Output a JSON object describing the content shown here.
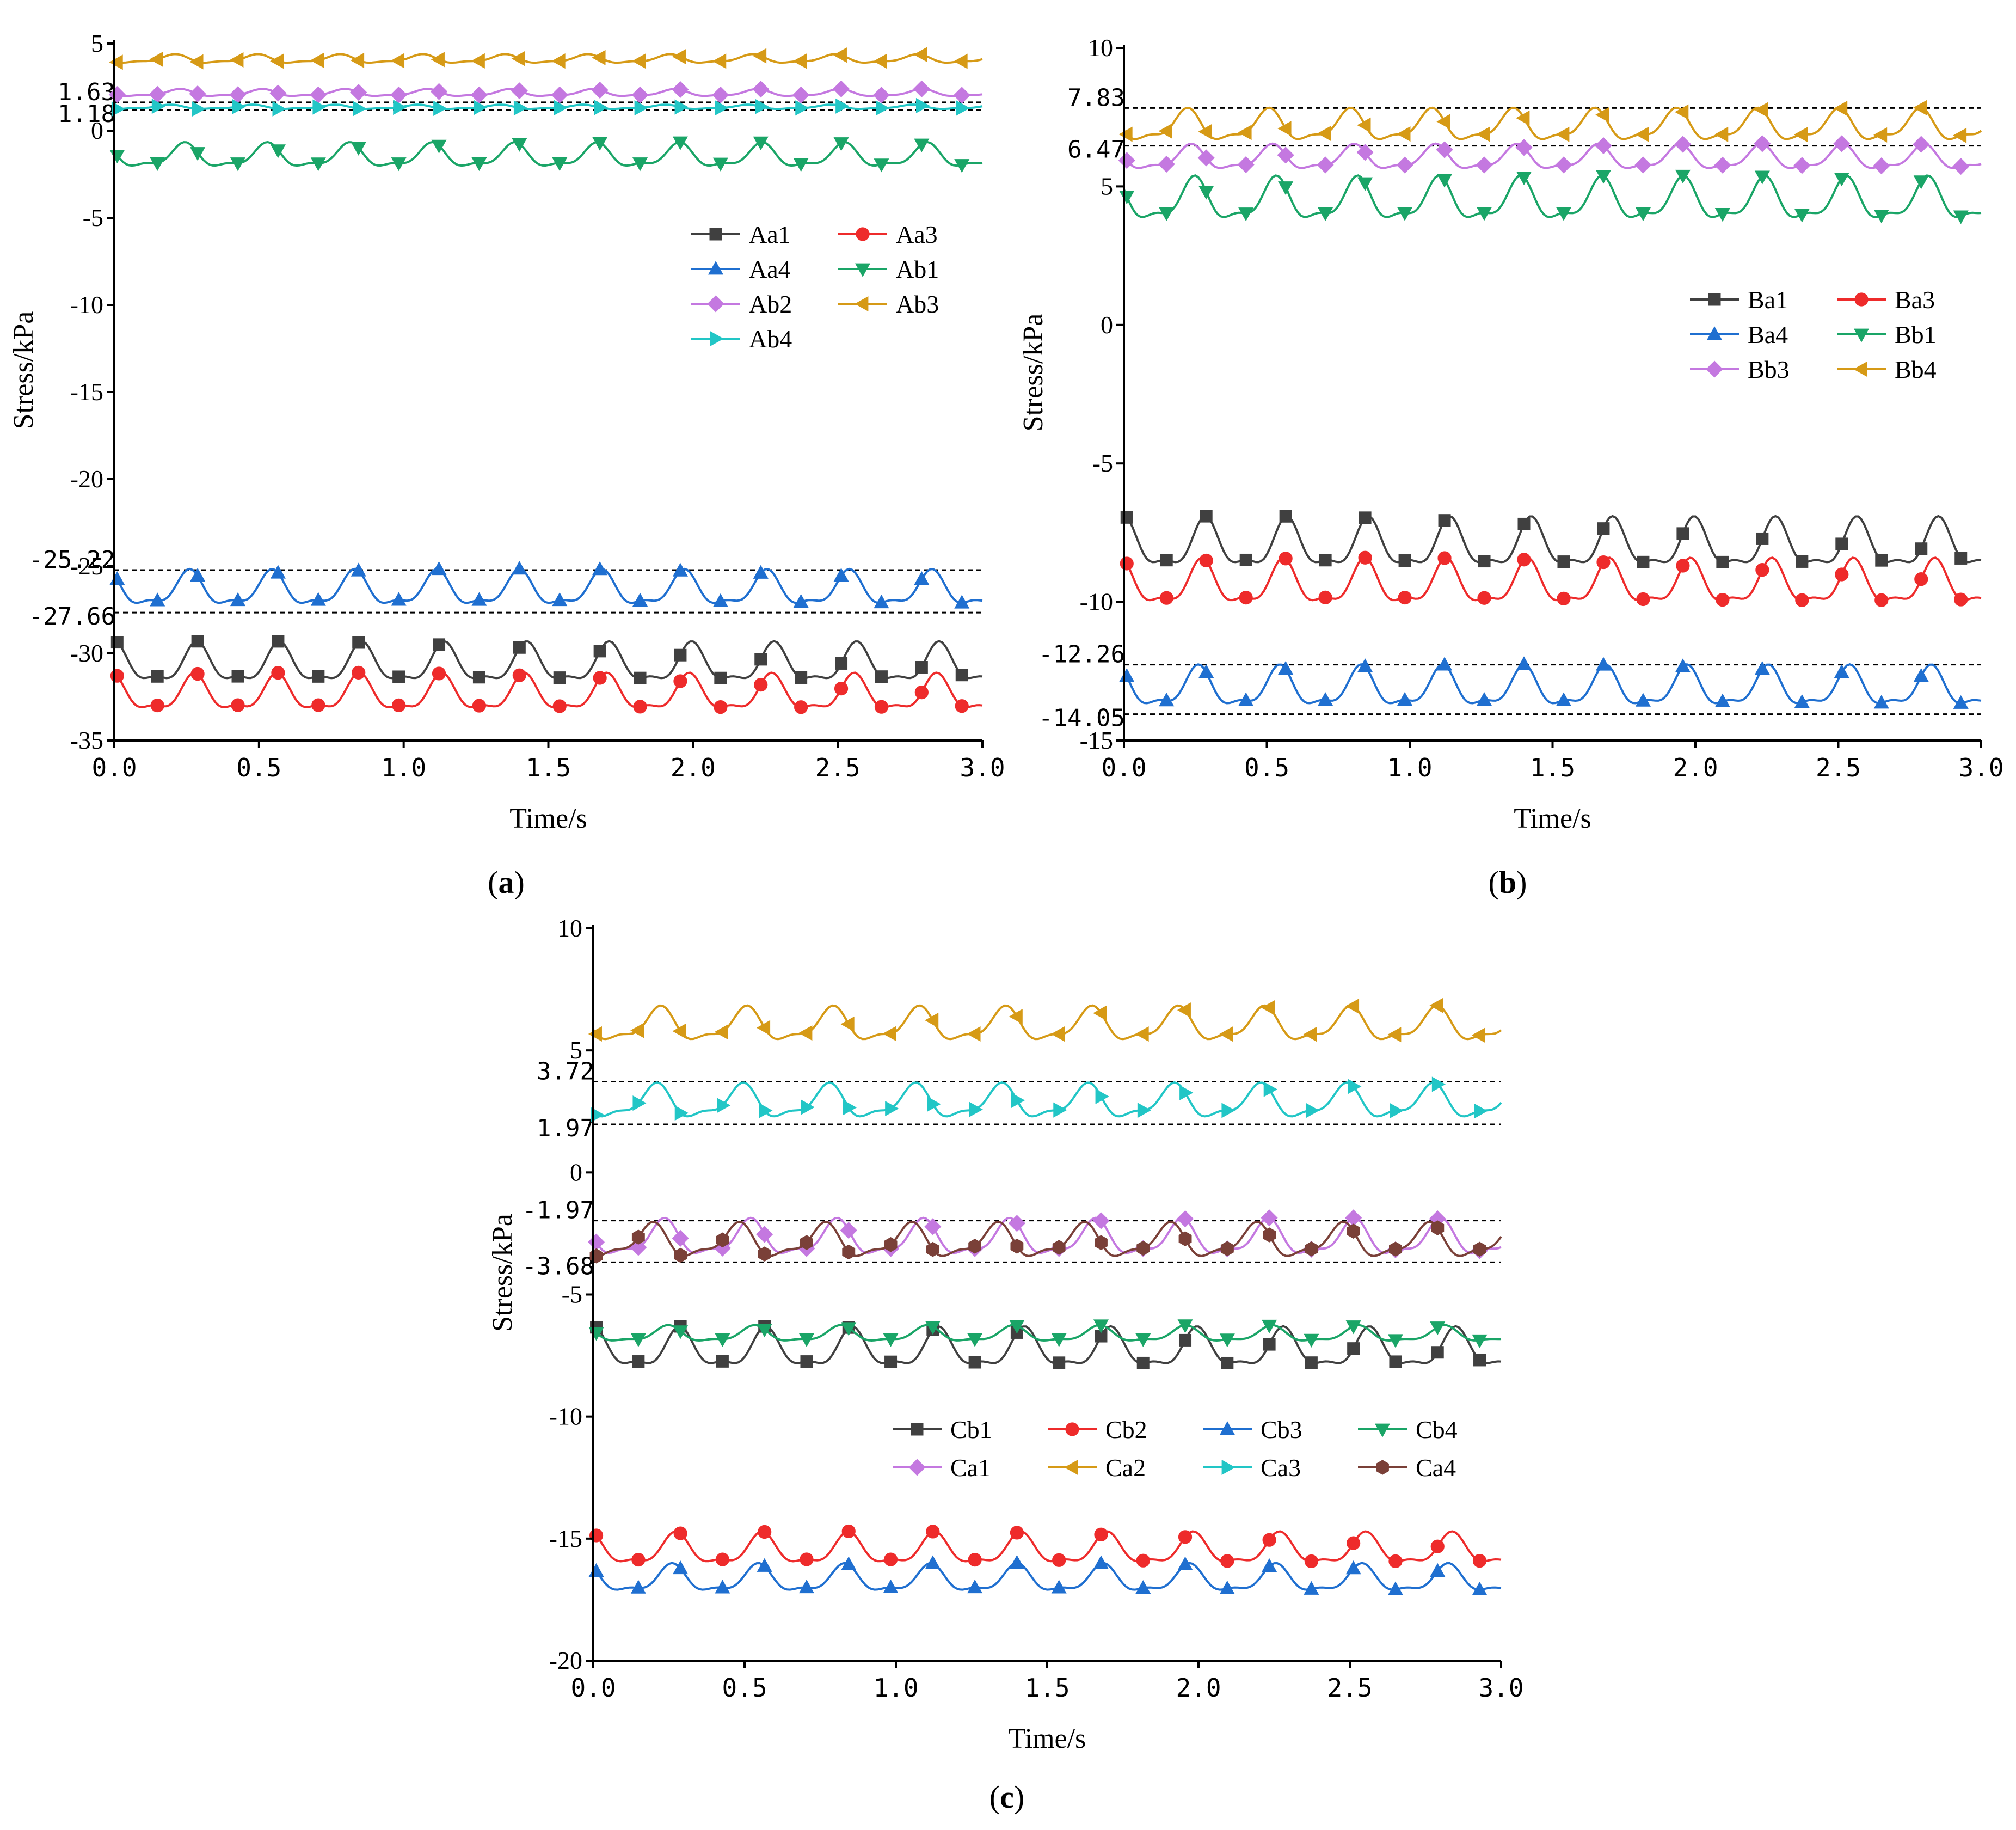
{
  "figure": {
    "panels": [
      "(a)",
      "(b)",
      "(c)"
    ]
  },
  "chart_data": [
    {
      "type": "line",
      "panel_label": "(a)",
      "xlabel": "Time/s",
      "ylabel": "Stress/kPa",
      "xlim": [
        0,
        3
      ],
      "ylim": [
        -35,
        5
      ],
      "xticks": [
        "0.0",
        "0.5",
        "1.0",
        "1.5",
        "2.0",
        "2.5",
        "3.0"
      ],
      "yticks": [
        "5",
        "0",
        "-5",
        "-10",
        "-15",
        "-20",
        "-25",
        "-30",
        "-35"
      ],
      "ref_lines": [
        {
          "value": 1.63,
          "label": "1.63"
        },
        {
          "value": 1.18,
          "label": "1.18"
        },
        {
          "value": -25.22,
          "label": "-25.22"
        },
        {
          "value": -27.66,
          "label": "-27.66"
        }
      ],
      "legend_position": "center-right",
      "legend_columns": 2,
      "series": [
        {
          "name": "Aa1",
          "color": "#404040",
          "marker": "square",
          "center": -30.7,
          "amplitude": 1.4,
          "phase": 0.0
        },
        {
          "name": "Aa3",
          "color": "#ee2b2b",
          "marker": "circle",
          "center": -32.4,
          "amplitude": 1.3,
          "phase": 0.2
        },
        {
          "name": "Aa4",
          "color": "#1f6fd0",
          "marker": "triangle-up",
          "center": -26.4,
          "amplitude": 1.25,
          "phase": 0.6
        },
        {
          "name": "Ab1",
          "color": "#1aa567",
          "marker": "triangle-down",
          "center": -1.5,
          "amplitude": 0.85,
          "phase": 1.0
        },
        {
          "name": "Ab2",
          "color": "#c478e0",
          "marker": "diamond",
          "center": 2.15,
          "amplitude": 0.25,
          "phase": 1.4
        },
        {
          "name": "Ab3",
          "color": "#d69a16",
          "marker": "triangle-left",
          "center": 4.1,
          "amplitude": 0.3,
          "phase": 1.8
        },
        {
          "name": "Ab4",
          "color": "#22c6c6",
          "marker": "triangle-right",
          "center": 1.35,
          "amplitude": 0.15,
          "phase": 2.2
        }
      ]
    },
    {
      "type": "line",
      "panel_label": "(b)",
      "xlabel": "Time/s",
      "ylabel": "Stress/kPa",
      "xlim": [
        0,
        3
      ],
      "ylim": [
        -15,
        10
      ],
      "xticks": [
        "0.0",
        "0.5",
        "1.0",
        "1.5",
        "2.0",
        "2.5",
        "3.0"
      ],
      "yticks": [
        "10",
        "5",
        "0",
        "-5",
        "-10",
        "-15"
      ],
      "ref_lines": [
        {
          "value": 7.83,
          "label": "7.83"
        },
        {
          "value": 6.47,
          "label": "6.47"
        },
        {
          "value": -12.26,
          "label": "-12.26"
        },
        {
          "value": -14.05,
          "label": "-14.05"
        }
      ],
      "legend_position": "center-right",
      "legend_columns": 2,
      "series": [
        {
          "name": "Ba1",
          "color": "#404040",
          "marker": "square",
          "center": -8.0,
          "amplitude": 1.1,
          "phase": 0.0
        },
        {
          "name": "Ba3",
          "color": "#ee2b2b",
          "marker": "circle",
          "center": -9.4,
          "amplitude": 1.0,
          "phase": 0.3
        },
        {
          "name": "Ba4",
          "color": "#1f6fd0",
          "marker": "triangle-up",
          "center": -13.15,
          "amplitude": 0.9,
          "phase": 0.6
        },
        {
          "name": "Bb1",
          "color": "#1aa567",
          "marker": "triangle-down",
          "center": 4.45,
          "amplitude": 0.95,
          "phase": 0.9
        },
        {
          "name": "Bb3",
          "color": "#c478e0",
          "marker": "diamond",
          "center": 6.0,
          "amplitude": 0.55,
          "phase": 1.2
        },
        {
          "name": "Bb4",
          "color": "#d69a16",
          "marker": "triangle-left",
          "center": 7.15,
          "amplitude": 0.7,
          "phase": 1.5
        }
      ]
    },
    {
      "type": "line",
      "panel_label": "(c)",
      "xlabel": "Time/s",
      "ylabel": "Stress/kPa",
      "xlim": [
        0,
        3
      ],
      "ylim": [
        -20,
        10
      ],
      "xticks": [
        "0.0",
        "0.5",
        "1.0",
        "1.5",
        "2.0",
        "2.5",
        "3.0"
      ],
      "yticks": [
        "10",
        "5",
        "0",
        "-5",
        "-10",
        "-15",
        "-20"
      ],
      "ref_lines": [
        {
          "value": 3.72,
          "label": "3.72"
        },
        {
          "value": 1.97,
          "label": "1.97"
        },
        {
          "value": -1.97,
          "label": "-1.97"
        },
        {
          "value": -3.68,
          "label": "-3.68"
        }
      ],
      "legend_position": "bottom-right",
      "legend_columns": 4,
      "series": [
        {
          "name": "Cb1",
          "color": "#404040",
          "marker": "square",
          "center": -7.3,
          "amplitude": 1.0,
          "phase": 0.0
        },
        {
          "name": "Cb2",
          "color": "#ee2b2b",
          "marker": "circle",
          "center": -15.5,
          "amplitude": 0.8,
          "phase": 0.3
        },
        {
          "name": "Cb3",
          "color": "#1f6fd0",
          "marker": "triangle-up",
          "center": -16.7,
          "amplitude": 0.7,
          "phase": 0.6
        },
        {
          "name": "Cb4",
          "color": "#1aa567",
          "marker": "triangle-down",
          "center": -6.65,
          "amplitude": 0.4,
          "phase": 0.9
        },
        {
          "name": "Ca1",
          "color": "#c478e0",
          "marker": "diamond",
          "center": -2.75,
          "amplitude": 0.9,
          "phase": 1.2
        },
        {
          "name": "Ca2",
          "color": "#d69a16",
          "marker": "triangle-left",
          "center": 6.0,
          "amplitude": 0.85,
          "phase": 1.5
        },
        {
          "name": "Ca3",
          "color": "#22c6c6",
          "marker": "triangle-right",
          "center": 2.85,
          "amplitude": 0.85,
          "phase": 1.8
        },
        {
          "name": "Ca4",
          "color": "#7a4038",
          "marker": "hexagon",
          "center": -2.85,
          "amplitude": 0.85,
          "phase": 2.1
        }
      ]
    }
  ]
}
